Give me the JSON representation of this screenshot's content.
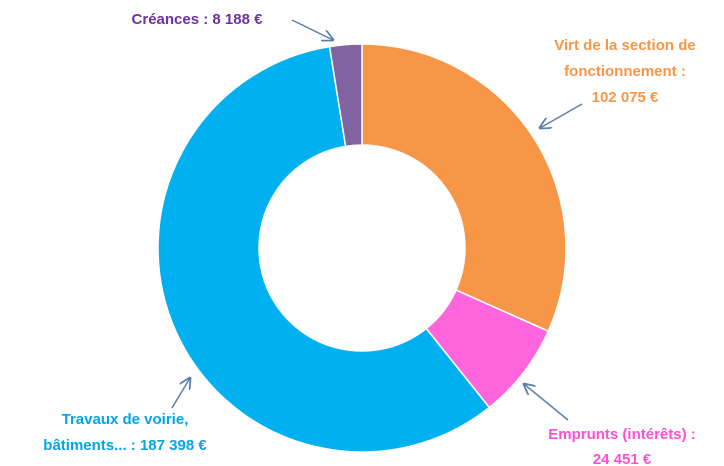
{
  "chart_data": {
    "type": "donut",
    "values": [
      102075,
      24451,
      187398,
      8188
    ],
    "value_labels": [
      [
        "Virt de la section de",
        "fonctionnement :",
        "102 075 €"
      ],
      [
        "Emprunts (intérêts) :",
        "24 451 €"
      ],
      [
        "Travaux de voirie,",
        "bâtiments... : 187 398 €"
      ],
      [
        "Créances : 8 188 €"
      ]
    ],
    "colors": [
      "#f79646",
      "#ff66dd",
      "#00b0f0",
      "#8064a2"
    ],
    "label_colors": [
      "#f79646",
      "#ff4fd8",
      "#00a6e8",
      "#7030a0"
    ]
  }
}
